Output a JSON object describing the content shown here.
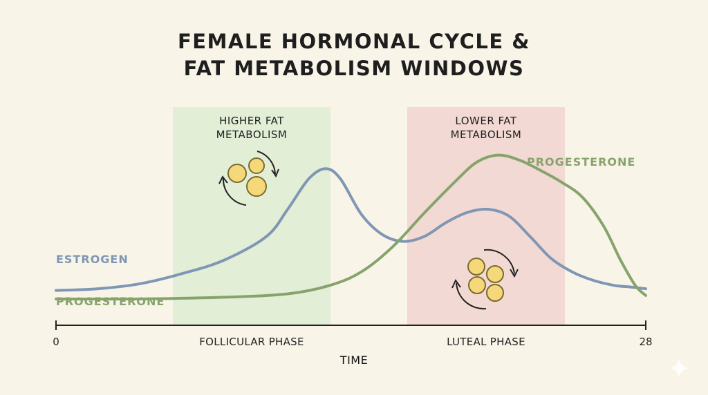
{
  "chart_data": {
    "type": "line",
    "title_lines": [
      "FEMALE HORMONAL CYCLE &",
      "FAT METABOLISM WINDOWS"
    ],
    "xlabel": "TIME",
    "ylabel": "",
    "xlim": [
      0,
      28
    ],
    "x_ticks": [
      {
        "value": 0,
        "label": "0"
      },
      {
        "value": 28,
        "label": "28"
      }
    ],
    "phases": [
      {
        "label": "FOLLICULAR PHASE",
        "center": 9.3
      },
      {
        "label": "LUTEAL PHASE",
        "center": 20.3
      }
    ],
    "windows": [
      {
        "label_lines": [
          "HIGHER FAT",
          "METABOLISM"
        ],
        "x_range": [
          5.6,
          13.1
        ],
        "color": "#e2eed6"
      },
      {
        "label_lines": [
          "LOWER FAT",
          "METABOLISM"
        ],
        "x_range": [
          16.7,
          24.2
        ],
        "color": "#f3d9d3"
      }
    ],
    "series": [
      {
        "name": "ESTROGEN",
        "color": "#7f96b4",
        "x": [
          0,
          2,
          4,
          6,
          8,
          10,
          11,
          12,
          12.8,
          13.5,
          14.5,
          15.5,
          16.5,
          17.5,
          18.5,
          19.5,
          20.5,
          21.5,
          22.5,
          23.5,
          24.5,
          25.5,
          26.5,
          27.3,
          28
        ],
        "y": [
          0.12,
          0.13,
          0.16,
          0.22,
          0.3,
          0.44,
          0.6,
          0.78,
          0.84,
          0.78,
          0.57,
          0.45,
          0.41,
          0.44,
          0.52,
          0.58,
          0.6,
          0.56,
          0.44,
          0.31,
          0.23,
          0.18,
          0.15,
          0.14,
          0.13
        ]
      },
      {
        "name": "PROGESTERONE",
        "color": "#87a36c",
        "x": [
          0,
          4,
          8,
          11,
          13,
          14.5,
          16,
          17.5,
          19,
          20,
          21,
          22,
          23,
          24,
          25,
          26,
          26.8,
          27.5,
          28
        ],
        "y": [
          0.07,
          0.07,
          0.08,
          0.1,
          0.15,
          0.23,
          0.38,
          0.58,
          0.77,
          0.88,
          0.92,
          0.89,
          0.83,
          0.76,
          0.67,
          0.5,
          0.3,
          0.15,
          0.09
        ]
      }
    ],
    "series_labels": [
      {
        "text": "ESTROGEN",
        "color": "#7f96b4"
      },
      {
        "text": "PROGESTERONE",
        "color": "#87a36c"
      },
      {
        "text": "PROGESTERONE",
        "color": "#87a36c"
      }
    ],
    "grid": false
  }
}
